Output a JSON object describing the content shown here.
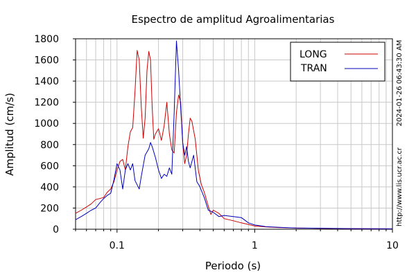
{
  "chart_data": {
    "type": "line",
    "title": "Espectro de amplitud Agroalimentarias",
    "xlabel": "Periodo (s)",
    "ylabel": "Amplitud (cm/s)",
    "x_scale": "log",
    "xlim": [
      0.05,
      10
    ],
    "ylim": [
      0,
      1800
    ],
    "x_major_ticks": [
      {
        "value": 0.1,
        "label": "0.1"
      },
      {
        "value": 1,
        "label": "1"
      },
      {
        "value": 10,
        "label": "10"
      }
    ],
    "y_ticks": [
      {
        "value": 0,
        "label": "0"
      },
      {
        "value": 200,
        "label": "200"
      },
      {
        "value": 400,
        "label": "400"
      },
      {
        "value": 600,
        "label": "600"
      },
      {
        "value": 800,
        "label": "800"
      },
      {
        "value": 1000,
        "label": "1000"
      },
      {
        "value": 1200,
        "label": "1200"
      },
      {
        "value": 1400,
        "label": "1400"
      },
      {
        "value": 1600,
        "label": "1600"
      },
      {
        "value": 1800,
        "label": "1800"
      }
    ],
    "grid": true,
    "legend_position": "top-right",
    "series": [
      {
        "name": "LONG",
        "color": "#cc0000",
        "points": [
          [
            0.05,
            150
          ],
          [
            0.055,
            180
          ],
          [
            0.06,
            210
          ],
          [
            0.065,
            240
          ],
          [
            0.07,
            280
          ],
          [
            0.075,
            290
          ],
          [
            0.08,
            300
          ],
          [
            0.085,
            350
          ],
          [
            0.09,
            380
          ],
          [
            0.095,
            450
          ],
          [
            0.1,
            560
          ],
          [
            0.105,
            640
          ],
          [
            0.11,
            660
          ],
          [
            0.115,
            560
          ],
          [
            0.12,
            780
          ],
          [
            0.125,
            920
          ],
          [
            0.13,
            960
          ],
          [
            0.135,
            1300
          ],
          [
            0.14,
            1690
          ],
          [
            0.145,
            1600
          ],
          [
            0.15,
            1150
          ],
          [
            0.155,
            860
          ],
          [
            0.16,
            1050
          ],
          [
            0.165,
            1500
          ],
          [
            0.17,
            1680
          ],
          [
            0.175,
            1600
          ],
          [
            0.18,
            1150
          ],
          [
            0.185,
            850
          ],
          [
            0.19,
            900
          ],
          [
            0.2,
            950
          ],
          [
            0.21,
            840
          ],
          [
            0.22,
            980
          ],
          [
            0.23,
            1200
          ],
          [
            0.24,
            900
          ],
          [
            0.25,
            750
          ],
          [
            0.26,
            720
          ],
          [
            0.27,
            1100
          ],
          [
            0.28,
            1270
          ],
          [
            0.29,
            1200
          ],
          [
            0.3,
            820
          ],
          [
            0.31,
            620
          ],
          [
            0.32,
            700
          ],
          [
            0.33,
            900
          ],
          [
            0.34,
            1050
          ],
          [
            0.35,
            1020
          ],
          [
            0.37,
            850
          ],
          [
            0.39,
            550
          ],
          [
            0.41,
            420
          ],
          [
            0.43,
            350
          ],
          [
            0.45,
            260
          ],
          [
            0.48,
            140
          ],
          [
            0.5,
            180
          ],
          [
            0.55,
            150
          ],
          [
            0.6,
            100
          ],
          [
            0.7,
            80
          ],
          [
            0.8,
            60
          ],
          [
            0.9,
            45
          ],
          [
            1,
            30
          ],
          [
            1.2,
            22
          ],
          [
            1.5,
            16
          ],
          [
            2,
            12
          ],
          [
            3,
            8
          ],
          [
            4,
            6
          ],
          [
            5,
            5
          ],
          [
            7,
            4
          ],
          [
            10,
            3
          ]
        ]
      },
      {
        "name": "TRAN",
        "color": "#0000bb",
        "points": [
          [
            0.05,
            90
          ],
          [
            0.055,
            120
          ],
          [
            0.06,
            150
          ],
          [
            0.065,
            180
          ],
          [
            0.07,
            200
          ],
          [
            0.075,
            250
          ],
          [
            0.08,
            290
          ],
          [
            0.085,
            320
          ],
          [
            0.09,
            340
          ],
          [
            0.095,
            470
          ],
          [
            0.1,
            620
          ],
          [
            0.105,
            560
          ],
          [
            0.11,
            380
          ],
          [
            0.115,
            560
          ],
          [
            0.12,
            620
          ],
          [
            0.125,
            560
          ],
          [
            0.13,
            620
          ],
          [
            0.135,
            460
          ],
          [
            0.14,
            420
          ],
          [
            0.145,
            380
          ],
          [
            0.15,
            500
          ],
          [
            0.16,
            700
          ],
          [
            0.17,
            760
          ],
          [
            0.175,
            820
          ],
          [
            0.18,
            780
          ],
          [
            0.19,
            680
          ],
          [
            0.2,
            560
          ],
          [
            0.21,
            480
          ],
          [
            0.22,
            520
          ],
          [
            0.23,
            500
          ],
          [
            0.24,
            580
          ],
          [
            0.25,
            520
          ],
          [
            0.26,
            1100
          ],
          [
            0.27,
            1780
          ],
          [
            0.28,
            1500
          ],
          [
            0.29,
            1150
          ],
          [
            0.3,
            820
          ],
          [
            0.31,
            700
          ],
          [
            0.32,
            780
          ],
          [
            0.33,
            640
          ],
          [
            0.34,
            580
          ],
          [
            0.36,
            700
          ],
          [
            0.38,
            450
          ],
          [
            0.4,
            400
          ],
          [
            0.43,
            300
          ],
          [
            0.46,
            180
          ],
          [
            0.5,
            160
          ],
          [
            0.55,
            120
          ],
          [
            0.6,
            130
          ],
          [
            0.7,
            120
          ],
          [
            0.8,
            110
          ],
          [
            0.9,
            60
          ],
          [
            1,
            40
          ],
          [
            1.2,
            25
          ],
          [
            1.5,
            18
          ],
          [
            2,
            12
          ],
          [
            3,
            9
          ],
          [
            5,
            6
          ],
          [
            10,
            4
          ]
        ]
      }
    ]
  },
  "side_text": {
    "timestamp": "2024-01-26 06:43:30 AM",
    "website": "http://www.lis.ucr.ac.cr"
  }
}
